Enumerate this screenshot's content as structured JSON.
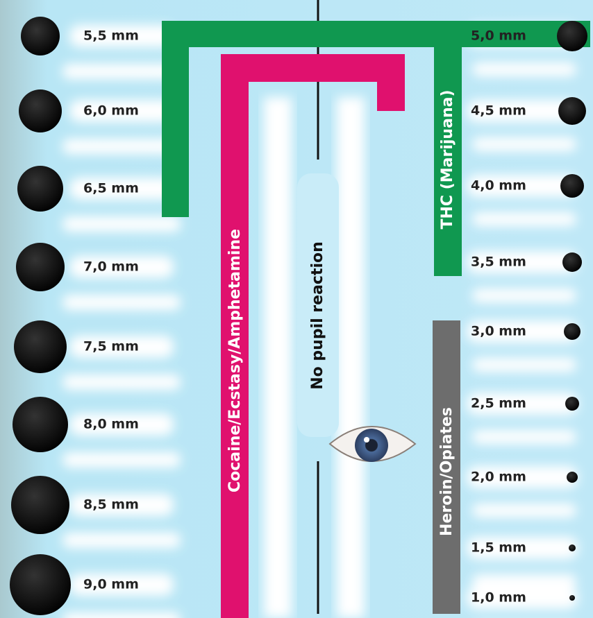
{
  "left_scale": [
    "5,5 mm",
    "6,0 mm",
    "6,5 mm",
    "7,0 mm",
    "7,5 mm",
    "8,0 mm",
    "8,5 mm",
    "9,0 mm"
  ],
  "right_scale": [
    "5,0 mm",
    "4,5 mm",
    "4,0 mm",
    "3,5 mm",
    "3,0 mm",
    "2,5 mm",
    "2,0 mm",
    "1,5 mm",
    "1,0 mm"
  ],
  "labels": {
    "thc": "THC (Marijuana)",
    "stimulants": "Cocaine/Ecstasy/Amphetamine",
    "no_reaction": "No pupil reaction",
    "opiates": "Heroin/Opiates"
  }
}
